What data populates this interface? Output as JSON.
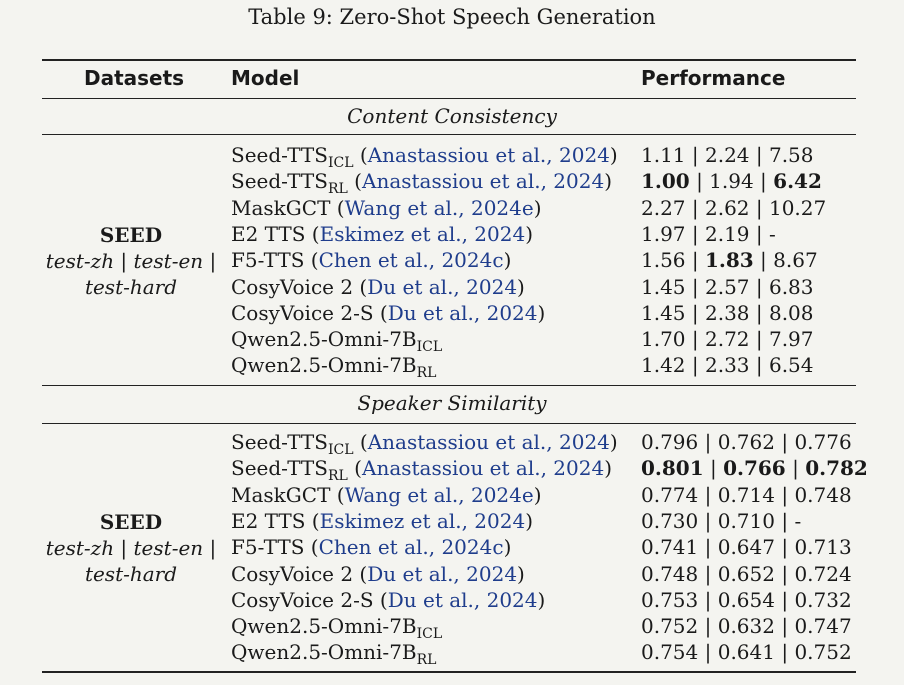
{
  "caption": "Table 9: Zero-Shot Speech Generation",
  "header": {
    "datasets": "Datasets",
    "model": "Model",
    "performance": "Performance"
  },
  "sep": " | ",
  "sections": [
    {
      "title": "Content Consistency",
      "dataset": {
        "name": "SEED",
        "line1": "test-zh | test-en |",
        "line2": "test-hard"
      },
      "rows": [
        {
          "name": "Seed-TTS",
          "sub": "ICL",
          "cite_pre": " (",
          "cite": "Anastassiou et al., 2024",
          "cite_post": ")",
          "vals": [
            "1.11",
            "2.24",
            "7.58"
          ],
          "bold": [
            false,
            false,
            false
          ]
        },
        {
          "name": "Seed-TTS",
          "sub": "RL",
          "cite_pre": " (",
          "cite": "Anastassiou et al., 2024",
          "cite_post": ")",
          "vals": [
            "1.00",
            "1.94",
            "6.42"
          ],
          "bold": [
            true,
            false,
            true
          ]
        },
        {
          "name": "MaskGCT",
          "sub": "",
          "cite_pre": " (",
          "cite": "Wang et al., 2024e",
          "cite_post": ")",
          "vals": [
            "2.27",
            "2.62",
            "10.27"
          ],
          "bold": [
            false,
            false,
            false
          ]
        },
        {
          "name": "E2 TTS",
          "sub": "",
          "cite_pre": " (",
          "cite": "Eskimez et al., 2024",
          "cite_post": ")",
          "vals": [
            "1.97",
            "2.19",
            "-"
          ],
          "bold": [
            false,
            false,
            false
          ]
        },
        {
          "name": "F5-TTS",
          "sub": "",
          "cite_pre": " (",
          "cite": "Chen et al., 2024c",
          "cite_post": ")",
          "vals": [
            "1.56",
            "1.83",
            "8.67"
          ],
          "bold": [
            false,
            true,
            false
          ]
        },
        {
          "name": "CosyVoice 2",
          "sub": "",
          "cite_pre": " (",
          "cite": "Du et al., 2024",
          "cite_post": ")",
          "vals": [
            "1.45",
            "2.57",
            "6.83"
          ],
          "bold": [
            false,
            false,
            false
          ]
        },
        {
          "name": "CosyVoice 2-S",
          "sub": "",
          "cite_pre": " (",
          "cite": "Du et al., 2024",
          "cite_post": ")",
          "vals": [
            "1.45",
            "2.38",
            "8.08"
          ],
          "bold": [
            false,
            false,
            false
          ]
        },
        {
          "name": "Qwen2.5-Omni-7B",
          "sub": "ICL",
          "cite_pre": "",
          "cite": "",
          "cite_post": "",
          "vals": [
            "1.70",
            "2.72",
            "7.97"
          ],
          "bold": [
            false,
            false,
            false
          ]
        },
        {
          "name": "Qwen2.5-Omni-7B",
          "sub": "RL",
          "cite_pre": "",
          "cite": "",
          "cite_post": "",
          "vals": [
            "1.42",
            "2.33",
            "6.54"
          ],
          "bold": [
            false,
            false,
            false
          ]
        }
      ]
    },
    {
      "title": "Speaker Similarity",
      "dataset": {
        "name": "SEED",
        "line1": "test-zh | test-en |",
        "line2": "test-hard"
      },
      "rows": [
        {
          "name": "Seed-TTS",
          "sub": "ICL",
          "cite_pre": " (",
          "cite": "Anastassiou et al., 2024",
          "cite_post": ")",
          "vals": [
            "0.796",
            "0.762",
            "0.776"
          ],
          "bold": [
            false,
            false,
            false
          ]
        },
        {
          "name": "Seed-TTS",
          "sub": "RL",
          "cite_pre": " (",
          "cite": "Anastassiou et al., 2024",
          "cite_post": ")",
          "vals": [
            "0.801",
            "0.766",
            "0.782"
          ],
          "bold": [
            true,
            true,
            true
          ]
        },
        {
          "name": "MaskGCT",
          "sub": "",
          "cite_pre": " (",
          "cite": "Wang et al., 2024e",
          "cite_post": ")",
          "vals": [
            "0.774",
            "0.714",
            "0.748"
          ],
          "bold": [
            false,
            false,
            false
          ]
        },
        {
          "name": "E2 TTS",
          "sub": "",
          "cite_pre": " (",
          "cite": "Eskimez et al., 2024",
          "cite_post": ")",
          "vals": [
            "0.730",
            "0.710",
            "-"
          ],
          "bold": [
            false,
            false,
            false
          ]
        },
        {
          "name": "F5-TTS",
          "sub": "",
          "cite_pre": " (",
          "cite": "Chen et al., 2024c",
          "cite_post": ")",
          "vals": [
            "0.741",
            "0.647",
            "0.713"
          ],
          "bold": [
            false,
            false,
            false
          ]
        },
        {
          "name": "CosyVoice 2",
          "sub": "",
          "cite_pre": " (",
          "cite": "Du et al., 2024",
          "cite_post": ")",
          "vals": [
            "0.748",
            "0.652",
            "0.724"
          ],
          "bold": [
            false,
            false,
            false
          ]
        },
        {
          "name": "CosyVoice 2-S",
          "sub": "",
          "cite_pre": " (",
          "cite": "Du et al., 2024",
          "cite_post": ")",
          "vals": [
            "0.753",
            "0.654",
            "0.732"
          ],
          "bold": [
            false,
            false,
            false
          ]
        },
        {
          "name": "Qwen2.5-Omni-7B",
          "sub": "ICL",
          "cite_pre": "",
          "cite": "",
          "cite_post": "",
          "vals": [
            "0.752",
            "0.632",
            "0.747"
          ],
          "bold": [
            false,
            false,
            false
          ]
        },
        {
          "name": "Qwen2.5-Omni-7B",
          "sub": "RL",
          "cite_pre": "",
          "cite": "",
          "cite_post": "",
          "vals": [
            "0.754",
            "0.641",
            "0.752"
          ],
          "bold": [
            false,
            false,
            false
          ]
        }
      ]
    }
  ]
}
